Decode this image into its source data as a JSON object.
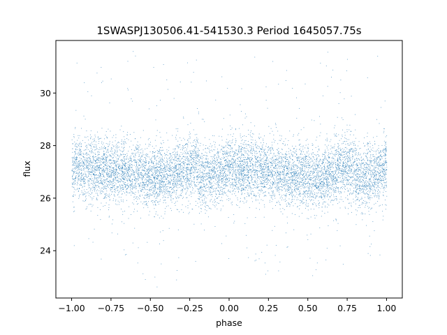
{
  "chart_data": {
    "type": "scatter",
    "title": "1SWASPJ130506.41-541530.3 Period 1645057.75s",
    "xlabel": "phase",
    "ylabel": "flux",
    "xlim": [
      -1.1,
      1.1
    ],
    "ylim": [
      22.2,
      32.0
    ],
    "xticks": [
      -1.0,
      -0.75,
      -0.5,
      -0.25,
      0.0,
      0.25,
      0.5,
      0.75,
      1.0
    ],
    "xtick_labels": [
      "−1.00",
      "−0.75",
      "−0.50",
      "−0.25",
      "0.00",
      "0.25",
      "0.50",
      "0.75",
      "1.00"
    ],
    "yticks": [
      24,
      26,
      28,
      30
    ],
    "ytick_labels": [
      "24",
      "26",
      "28",
      "30"
    ],
    "grid": false,
    "legend": "none",
    "marker_color": "#1f77b4",
    "series": [
      {
        "phase_range": [
          -1.0,
          1.0
        ],
        "baseline_curve": {
          "phase": [
            -1.0,
            -0.75,
            -0.5,
            -0.4,
            -0.25,
            0.0,
            0.25,
            0.4,
            0.5,
            0.6,
            0.75,
            1.0
          ],
          "median_flux": [
            27.4,
            27.1,
            26.7,
            26.6,
            26.9,
            27.4,
            27.1,
            26.8,
            26.7,
            26.6,
            26.9,
            27.4
          ]
        },
        "typical_scatter": 0.8,
        "flux_extent": [
          22.6,
          31.6
        ],
        "n_points_approx": 24000
      }
    ]
  }
}
